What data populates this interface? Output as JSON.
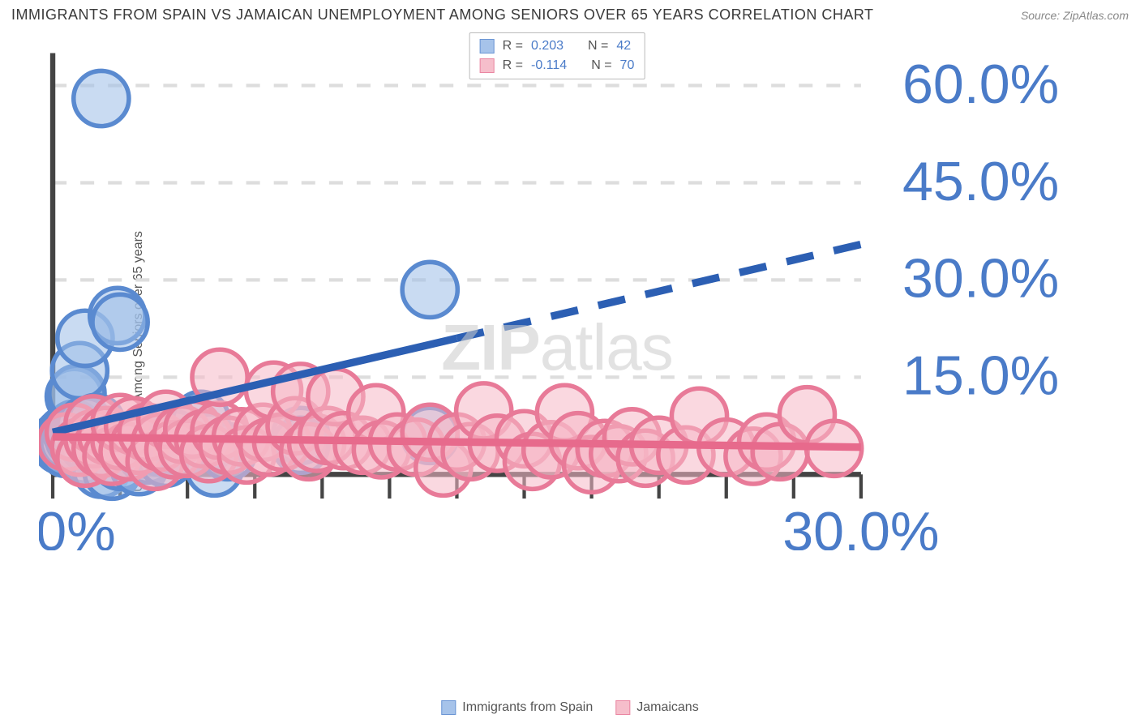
{
  "title": "IMMIGRANTS FROM SPAIN VS JAMAICAN UNEMPLOYMENT AMONG SENIORS OVER 65 YEARS CORRELATION CHART",
  "source": "Source: ZipAtlas.com",
  "y_axis_label": "Unemployment Among Seniors over 65 years",
  "watermark_zip": "ZIP",
  "watermark_atlas": "atlas",
  "chart": {
    "type": "scatter",
    "xlim": [
      0,
      30
    ],
    "ylim": [
      0,
      65
    ],
    "x_ticks_minor_step": 2.5,
    "x_tick_labels": [
      {
        "pos": 0,
        "label": "0.0%"
      },
      {
        "pos": 30,
        "label": "30.0%"
      }
    ],
    "y_ticks": [
      15,
      30,
      45,
      60
    ],
    "y_tick_labels": [
      "15.0%",
      "30.0%",
      "45.0%",
      "60.0%"
    ],
    "background_color": "#ffffff",
    "grid_color": "#dddddd",
    "axis_color": "#444444",
    "tick_label_color": "#4a7bc8",
    "marker_radius": 8,
    "series": [
      {
        "name": "Immigrants from Spain",
        "R": "0.203",
        "N": "42",
        "fill": "#9dbde8",
        "stroke": "#5a8ad0",
        "fill_opacity": 0.55,
        "line_color": "#2c5fb3",
        "line_width": 2.2,
        "trend": {
          "x1": 0,
          "y1": 6.5,
          "x2": 15,
          "y2": 21.0,
          "dash_from_x": 15,
          "dash_to_x": 30,
          "y_at_dash_end": 35.5
        },
        "points": [
          [
            0.2,
            5.0
          ],
          [
            0.3,
            5.2
          ],
          [
            0.3,
            4.5
          ],
          [
            0.4,
            5.8
          ],
          [
            0.5,
            6.2
          ],
          [
            0.5,
            4.0
          ],
          [
            0.6,
            5.0
          ],
          [
            0.7,
            6.5
          ],
          [
            0.8,
            12.0
          ],
          [
            0.8,
            7.0
          ],
          [
            0.8,
            5.5
          ],
          [
            0.9,
            12.5
          ],
          [
            1.0,
            16.0
          ],
          [
            1.0,
            6.0
          ],
          [
            1.2,
            21.0
          ],
          [
            1.2,
            3.0
          ],
          [
            1.2,
            7.5
          ],
          [
            1.3,
            4.8
          ],
          [
            1.5,
            5.5
          ],
          [
            1.6,
            8.0
          ],
          [
            1.8,
            58.0
          ],
          [
            1.8,
            0.8
          ],
          [
            2.0,
            4.5
          ],
          [
            2.2,
            0.5
          ],
          [
            2.4,
            24.5
          ],
          [
            2.5,
            23.5
          ],
          [
            2.5,
            2.0
          ],
          [
            3.0,
            5.2
          ],
          [
            3.2,
            1.2
          ],
          [
            3.5,
            3.0
          ],
          [
            4.0,
            4.2
          ],
          [
            4.2,
            2.5
          ],
          [
            4.5,
            5.5
          ],
          [
            4.8,
            4.0
          ],
          [
            5.5,
            8.5
          ],
          [
            5.8,
            5.0
          ],
          [
            6.0,
            1.0
          ],
          [
            6.5,
            3.5
          ],
          [
            9.2,
            6.0
          ],
          [
            9.2,
            4.5
          ],
          [
            14.0,
            28.5
          ],
          [
            14.0,
            6.0
          ]
        ]
      },
      {
        "name": "Jamaicans",
        "R": "-0.114",
        "N": "70",
        "fill": "#f6b8c6",
        "stroke": "#e87a98",
        "fill_opacity": 0.55,
        "line_color": "#e76a8c",
        "line_width": 2.2,
        "trend": {
          "x1": 0,
          "y1": 5.8,
          "x2": 30,
          "y2": 4.2,
          "dash_from_x": 30,
          "dash_to_x": 30,
          "y_at_dash_end": 4.2
        },
        "points": [
          [
            0.5,
            5.0
          ],
          [
            0.8,
            6.5
          ],
          [
            1.0,
            4.2
          ],
          [
            1.2,
            2.5
          ],
          [
            1.5,
            5.5
          ],
          [
            1.5,
            7.8
          ],
          [
            1.8,
            4.0
          ],
          [
            2.0,
            6.0
          ],
          [
            2.2,
            2.8
          ],
          [
            2.5,
            5.2
          ],
          [
            2.5,
            8.0
          ],
          [
            2.8,
            3.5
          ],
          [
            3.0,
            7.5
          ],
          [
            3.2,
            4.5
          ],
          [
            3.5,
            6.5
          ],
          [
            3.8,
            2.0
          ],
          [
            4.0,
            5.0
          ],
          [
            4.2,
            8.5
          ],
          [
            4.5,
            3.8
          ],
          [
            4.8,
            6.2
          ],
          [
            5.0,
            4.0
          ],
          [
            5.2,
            7.0
          ],
          [
            5.6,
            5.5
          ],
          [
            5.8,
            3.2
          ],
          [
            6.2,
            6.8
          ],
          [
            6.2,
            15.0
          ],
          [
            6.5,
            4.5
          ],
          [
            7.0,
            5.8
          ],
          [
            7.2,
            3.0
          ],
          [
            7.8,
            6.5
          ],
          [
            8.0,
            4.2
          ],
          [
            8.2,
            13.0
          ],
          [
            8.5,
            5.0
          ],
          [
            9.0,
            7.5
          ],
          [
            9.2,
            12.8
          ],
          [
            9.5,
            3.5
          ],
          [
            9.8,
            4.8
          ],
          [
            10.2,
            6.0
          ],
          [
            10.5,
            12.0
          ],
          [
            10.8,
            5.2
          ],
          [
            11.5,
            4.5
          ],
          [
            12.0,
            9.5
          ],
          [
            12.2,
            3.8
          ],
          [
            12.8,
            5.0
          ],
          [
            13.5,
            4.2
          ],
          [
            14.0,
            6.5
          ],
          [
            14.5,
            1.0
          ],
          [
            15.0,
            5.0
          ],
          [
            15.5,
            3.5
          ],
          [
            16.0,
            9.8
          ],
          [
            16.5,
            4.8
          ],
          [
            17.5,
            5.5
          ],
          [
            17.8,
            2.0
          ],
          [
            18.5,
            3.8
          ],
          [
            19.0,
            9.5
          ],
          [
            19.5,
            5.2
          ],
          [
            20.0,
            1.5
          ],
          [
            20.5,
            4.0
          ],
          [
            21.0,
            3.2
          ],
          [
            21.5,
            5.8
          ],
          [
            22.0,
            2.5
          ],
          [
            22.5,
            4.5
          ],
          [
            23.5,
            3.0
          ],
          [
            24.0,
            9.0
          ],
          [
            25.0,
            4.2
          ],
          [
            26.0,
            2.8
          ],
          [
            26.5,
            5.0
          ],
          [
            27.0,
            3.5
          ],
          [
            28.0,
            9.2
          ],
          [
            29.0,
            4.0
          ]
        ]
      }
    ]
  },
  "legend_top_labels": {
    "R": "R =",
    "N": "N ="
  },
  "legend_bottom": [
    "Immigrants from Spain",
    "Jamaicans"
  ]
}
